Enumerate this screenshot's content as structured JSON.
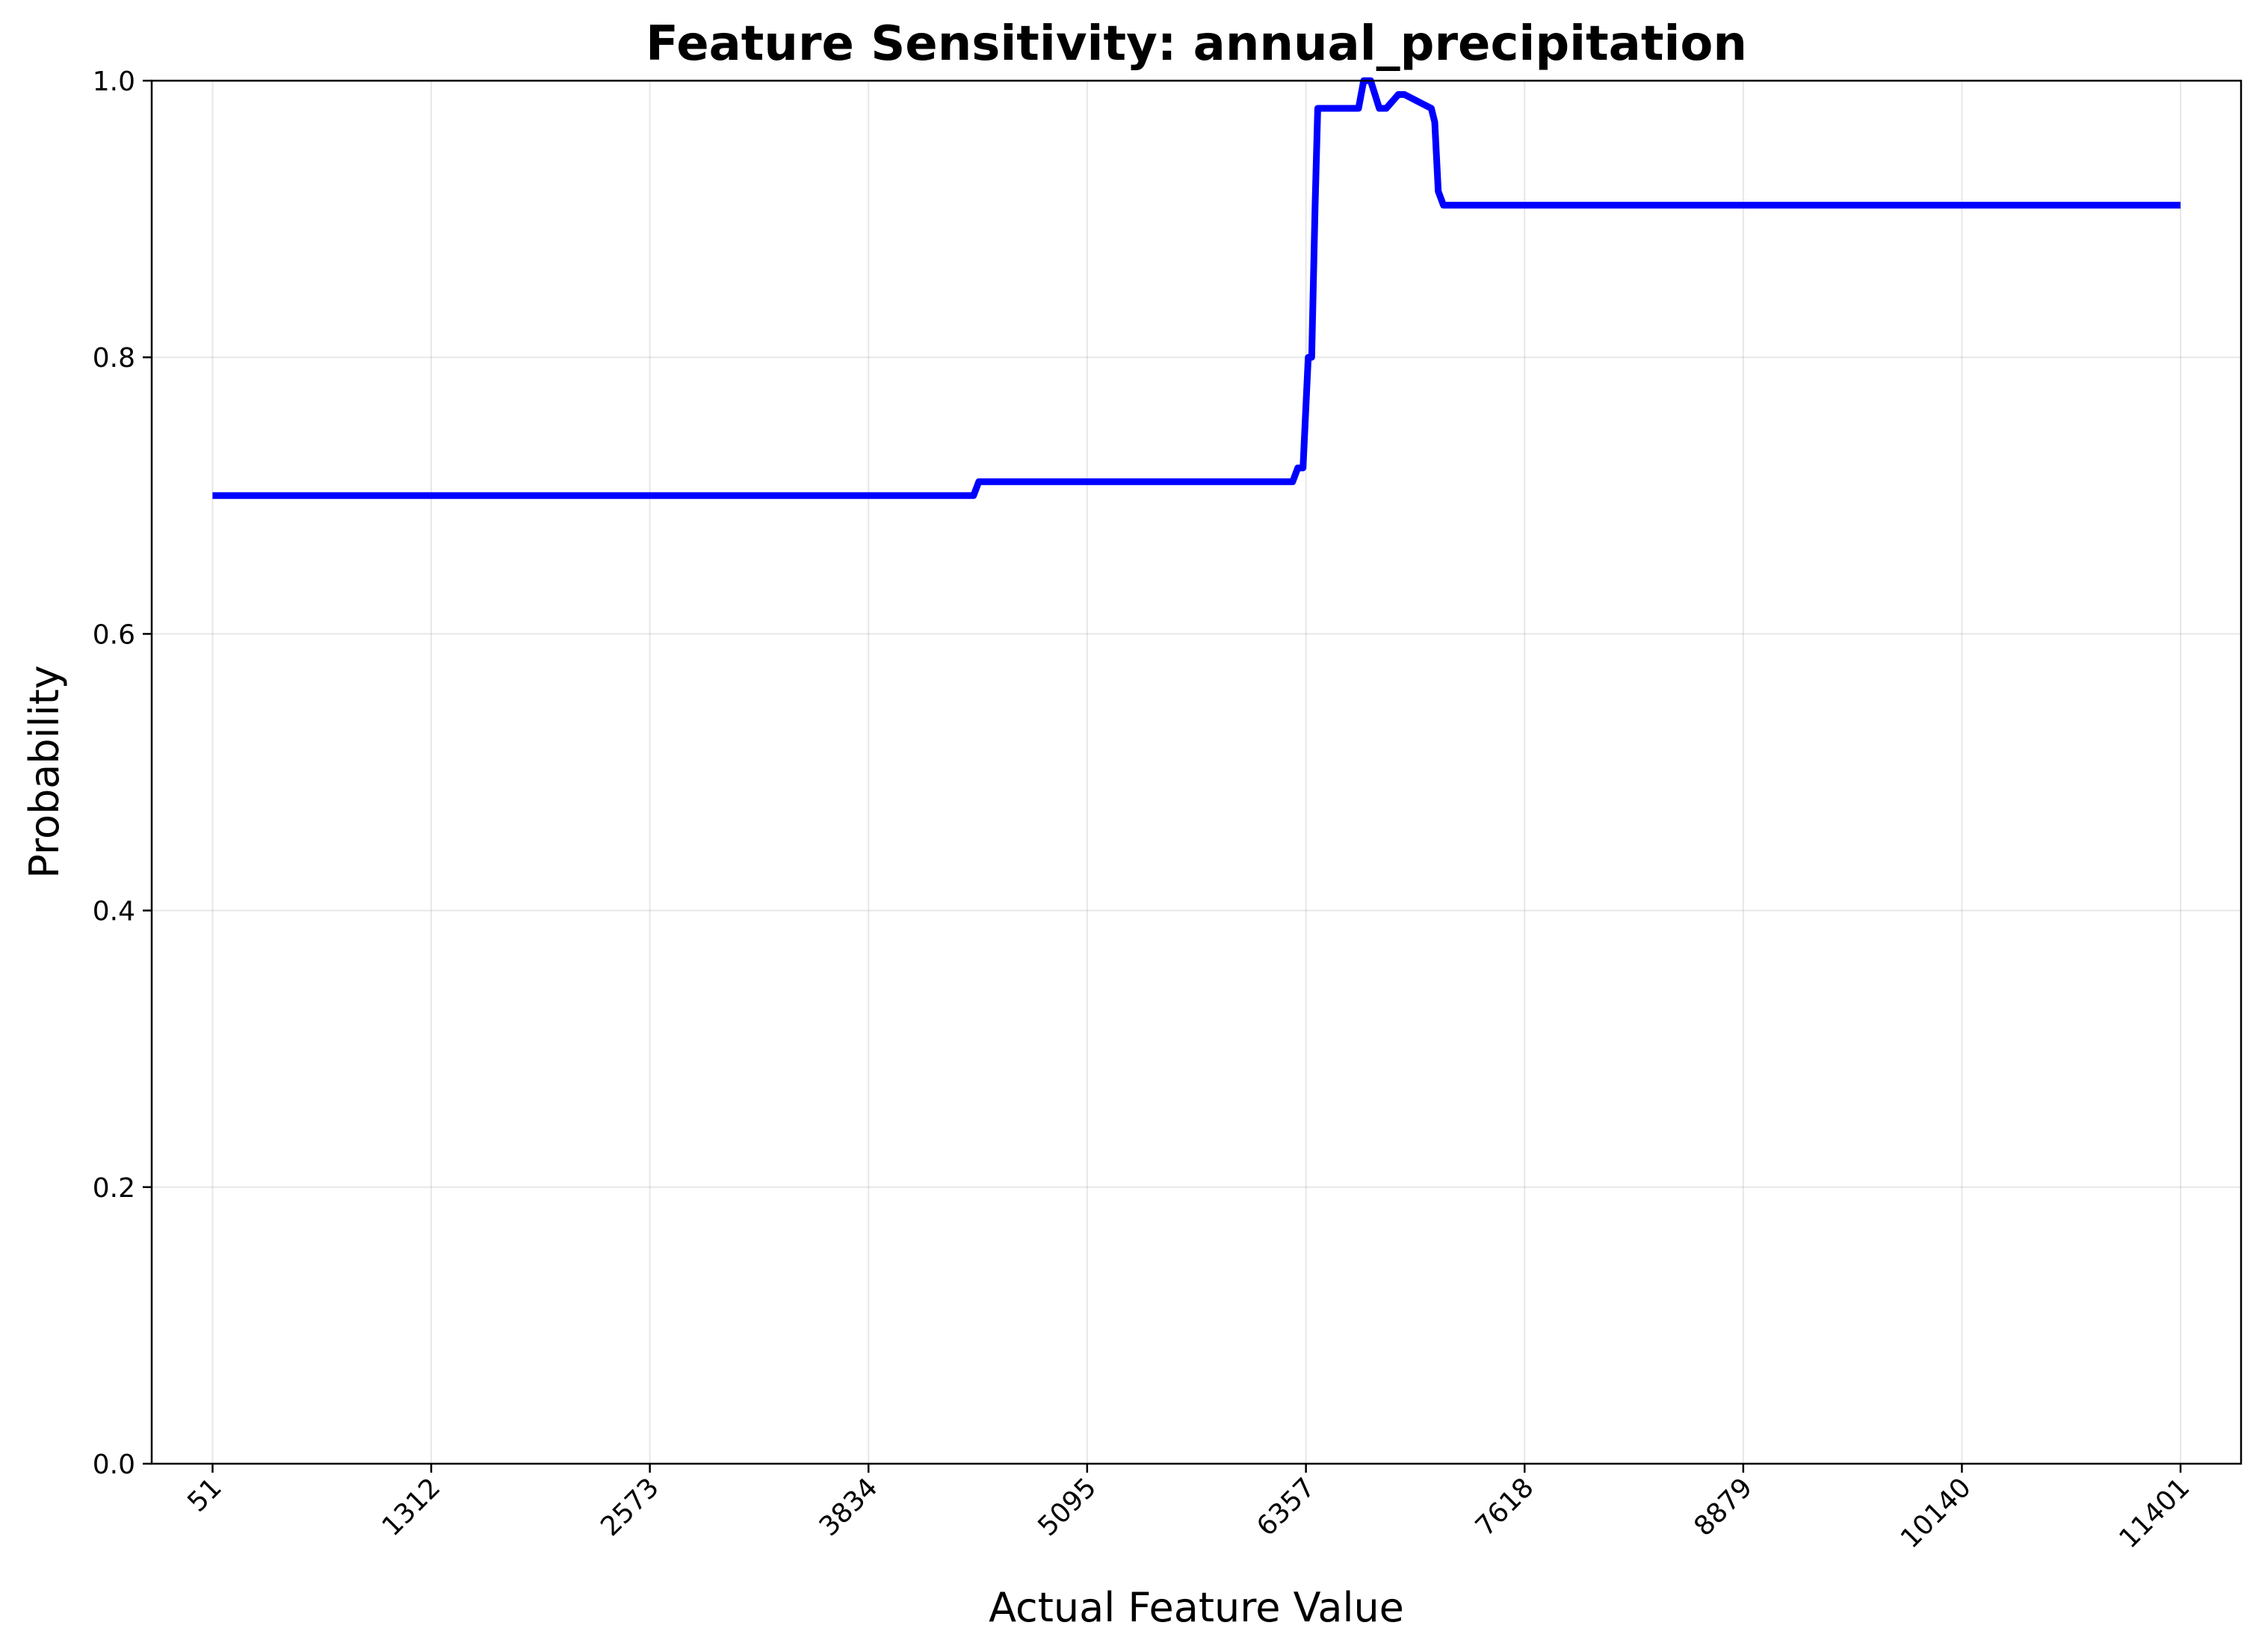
{
  "chart_data": {
    "type": "line",
    "title": "Feature Sensitivity: annual_precipitation",
    "xlabel": "Actual Feature Value",
    "ylabel": "Probability",
    "xlim": [
      -300,
      11750
    ],
    "ylim": [
      0.0,
      1.0
    ],
    "x_ticks": [
      51,
      1312,
      2573,
      3834,
      5095,
      6357,
      7618,
      8879,
      10140,
      11401
    ],
    "x_tick_labels": [
      "51",
      "1312",
      "2573",
      "3834",
      "5095",
      "6357",
      "7618",
      "8879",
      "10140",
      "11401"
    ],
    "y_ticks": [
      0.0,
      0.2,
      0.4,
      0.6,
      0.8,
      1.0
    ],
    "y_tick_labels": [
      "0.0",
      "0.2",
      "0.4",
      "0.6",
      "0.8",
      "1.0"
    ],
    "grid": true,
    "line_color": "#0000ff",
    "series": [
      {
        "x": [
          51,
          4440,
          4470,
          6280,
          6310,
          6340,
          6370,
          6390,
          6410,
          6425,
          6440,
          6660,
          6690,
          6730,
          6780,
          6820,
          6890,
          6925,
          7080,
          7100,
          7120,
          7150,
          11401
        ],
        "y": [
          0.7,
          0.7,
          0.71,
          0.71,
          0.72,
          0.72,
          0.8,
          0.8,
          0.91,
          0.98,
          0.98,
          0.98,
          1.0,
          1.0,
          0.98,
          0.98,
          0.99,
          0.99,
          0.98,
          0.97,
          0.92,
          0.91,
          0.91
        ]
      }
    ]
  }
}
